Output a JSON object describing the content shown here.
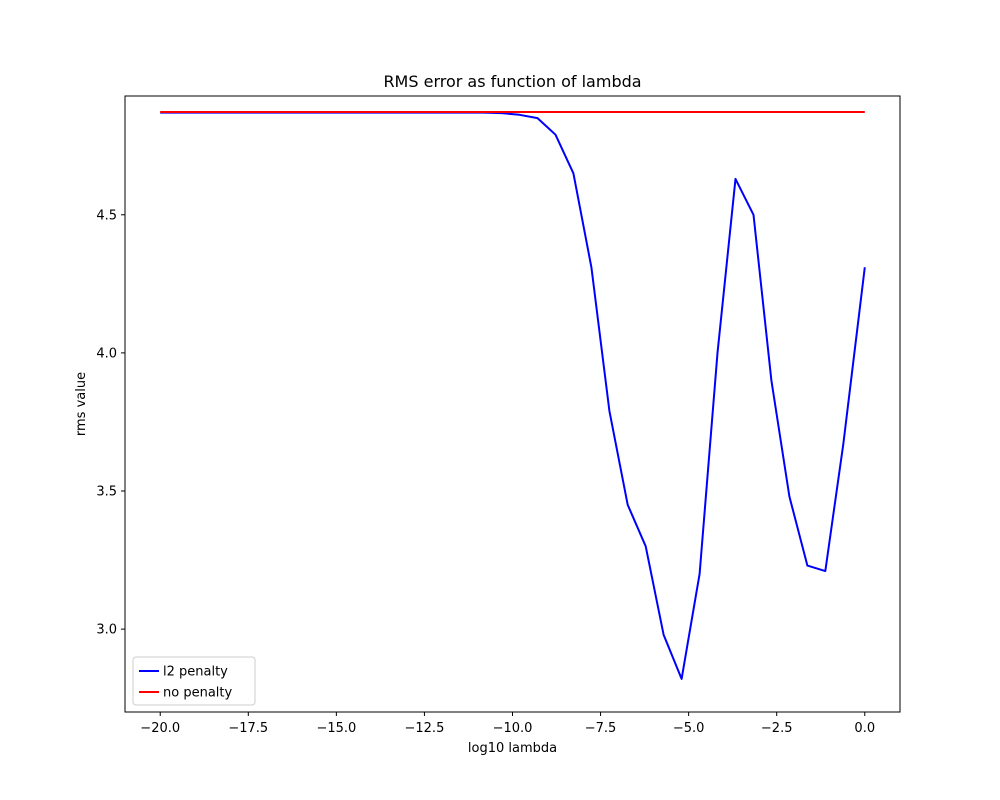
{
  "chart_data": {
    "type": "line",
    "title": "RMS error as function of lambda",
    "xlabel": "log10 lambda",
    "ylabel": "rms value",
    "xlim": [
      -21.0,
      1.0
    ],
    "ylim": [
      2.7,
      4.93
    ],
    "x_ticks": [
      -20.0,
      -17.5,
      -15.0,
      -12.5,
      -10.0,
      -7.5,
      -5.0,
      -2.5,
      0.0
    ],
    "x_tick_labels": [
      "−20.0",
      "−17.5",
      "−15.0",
      "−12.5",
      "−10.0",
      "−7.5",
      "−5.0",
      "−2.5",
      "0.0"
    ],
    "y_ticks": [
      3.0,
      3.5,
      4.0,
      4.5
    ],
    "y_tick_labels": [
      "3.0",
      "3.5",
      "4.0",
      "4.5"
    ],
    "grid": false,
    "legend_position": "lower-left",
    "series": [
      {
        "name": "l2 penalty",
        "color": "#0000ff",
        "x": [
          -20.0,
          -19.49,
          -18.98,
          -18.47,
          -17.96,
          -17.45,
          -16.94,
          -16.43,
          -15.92,
          -15.41,
          -14.9,
          -14.39,
          -13.88,
          -13.37,
          -12.86,
          -12.35,
          -11.84,
          -11.33,
          -10.82,
          -10.31,
          -9.8,
          -9.29,
          -8.78,
          -8.27,
          -7.76,
          -7.25,
          -6.73,
          -6.22,
          -5.71,
          -5.2,
          -4.69,
          -4.18,
          -3.67,
          -3.16,
          -2.65,
          -2.14,
          -1.63,
          -1.12,
          -0.61,
          0.0
        ],
        "y": [
          4.87,
          4.87,
          4.87,
          4.87,
          4.87,
          4.87,
          4.87,
          4.87,
          4.87,
          4.87,
          4.87,
          4.87,
          4.87,
          4.87,
          4.87,
          4.87,
          4.87,
          4.87,
          4.87,
          4.868,
          4.862,
          4.85,
          4.79,
          4.65,
          4.31,
          3.79,
          3.45,
          3.3,
          2.98,
          2.82,
          3.2,
          4.0,
          4.63,
          4.5,
          3.9,
          3.48,
          3.23,
          3.21,
          3.67,
          4.31
        ]
      },
      {
        "name": "no penalty",
        "color": "#ff0000",
        "x": [
          -20.0,
          0.0
        ],
        "y": [
          4.872,
          4.872
        ]
      }
    ]
  }
}
